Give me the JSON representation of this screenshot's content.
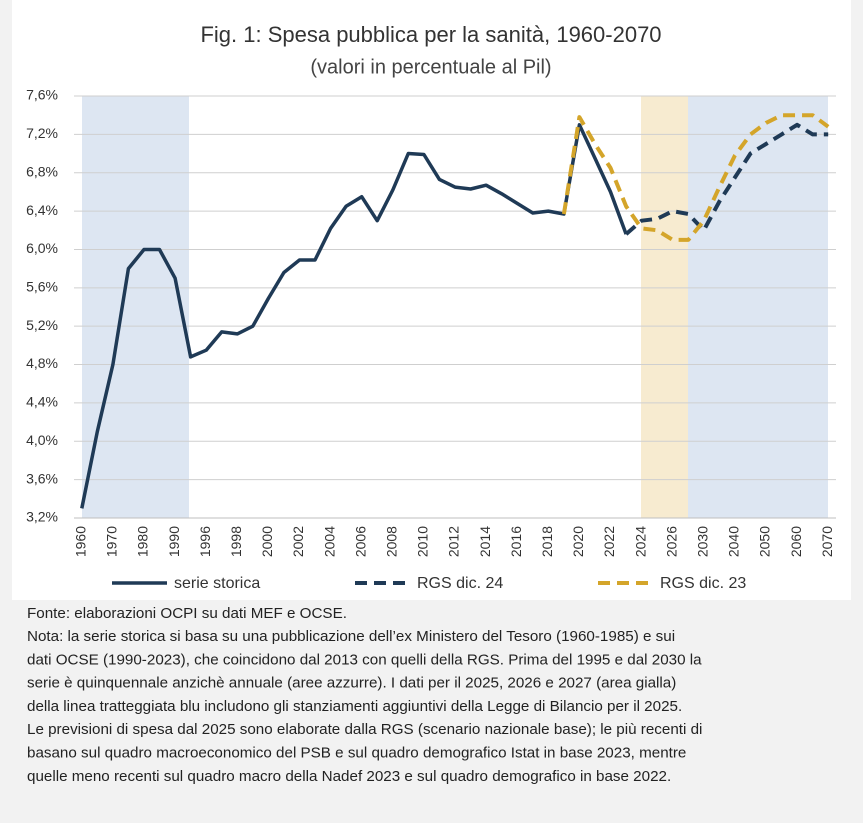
{
  "chart_data": {
    "type": "line",
    "title": "Fig. 1: Spesa pubblica per la sanità, 1960-2070",
    "subtitle": "(valori in percentuale al Pil)",
    "categories": [
      "1960",
      null,
      "1970",
      null,
      "1980",
      null,
      "1990",
      null,
      "1996",
      null,
      "1998",
      null,
      "2000",
      null,
      "2002",
      null,
      "2004",
      null,
      "2006",
      null,
      "2008",
      null,
      "2010",
      null,
      "2012",
      null,
      "2014",
      null,
      "2016",
      null,
      "2018",
      null,
      "2020",
      null,
      "2022",
      null,
      "2024",
      null,
      "2026",
      null,
      "2030",
      null,
      "2040",
      null,
      "2050",
      null,
      "2060",
      null,
      "2070"
    ],
    "series": [
      {
        "name": "serie storica",
        "color": "#1f3a56",
        "dashed": false,
        "values": [
          3.3,
          4.1,
          4.8,
          5.8,
          6.0,
          6.0,
          5.7,
          4.88,
          4.95,
          5.14,
          5.12,
          5.2,
          5.49,
          5.76,
          5.89,
          5.89,
          6.22,
          6.45,
          6.55,
          6.3,
          6.62,
          7.0,
          6.99,
          6.73,
          6.65,
          6.63,
          6.67,
          6.58,
          6.48,
          6.38,
          6.4,
          6.37,
          7.3,
          6.95,
          6.6,
          6.16,
          null,
          null,
          null,
          null,
          null,
          null,
          null,
          null,
          null,
          null,
          null,
          null,
          null
        ]
      },
      {
        "name": "RGS dic. 24",
        "color": "#1f3a56",
        "dashed": true,
        "values": [
          null,
          null,
          null,
          null,
          null,
          null,
          null,
          null,
          null,
          null,
          null,
          null,
          null,
          null,
          null,
          null,
          null,
          null,
          null,
          null,
          null,
          null,
          null,
          null,
          null,
          null,
          null,
          null,
          null,
          null,
          null,
          null,
          null,
          null,
          null,
          6.16,
          6.3,
          6.32,
          6.4,
          6.37,
          6.2,
          6.5,
          6.75,
          7.0,
          7.1,
          7.2,
          7.3,
          7.2,
          7.2
        ]
      },
      {
        "name": "RGS dic. 23",
        "color": "#d4a52a",
        "dashed": true,
        "values": [
          null,
          null,
          null,
          null,
          null,
          null,
          null,
          null,
          null,
          null,
          null,
          null,
          null,
          null,
          null,
          null,
          null,
          null,
          null,
          null,
          null,
          null,
          null,
          null,
          null,
          null,
          null,
          null,
          null,
          null,
          null,
          6.37,
          7.38,
          7.1,
          6.85,
          6.45,
          6.22,
          6.2,
          6.1,
          6.1,
          6.3,
          6.65,
          6.98,
          7.2,
          7.32,
          7.4,
          7.4,
          7.4,
          7.28
        ]
      }
    ],
    "ylim": [
      3.2,
      7.6
    ],
    "yticks": [
      {
        "value": 3.2,
        "label": "3,2%"
      },
      {
        "value": 3.6,
        "label": "3,6%"
      },
      {
        "value": 4.0,
        "label": "4,0%"
      },
      {
        "value": 4.4,
        "label": "4,4%"
      },
      {
        "value": 4.8,
        "label": "4,8%"
      },
      {
        "value": 5.2,
        "label": "5,2%"
      },
      {
        "value": 5.6,
        "label": "5,6%"
      },
      {
        "value": 6.0,
        "label": "6,0%"
      },
      {
        "value": 6.4,
        "label": "6,4%"
      },
      {
        "value": 6.8,
        "label": "6,8%"
      },
      {
        "value": 7.2,
        "label": "7,2%"
      },
      {
        "value": 7.6,
        "label": "7,6%"
      }
    ],
    "grid": true,
    "legend": "bottom",
    "source": "Fonte: elaborazioni OCPI su dati MEF e OCSE.",
    "note_lines": [
      "Nota: la serie storica si basa su una pubblicazione dell’ex Ministero del Tesoro (1960-1985) e sui",
      "dati OCSE (1990-2023), che coincidono dal 2013 con quelli della RGS. Prima del 1995 e dal 2030 la",
      "serie è quinquennale anzichè annuale (aree azzurre). I dati per il 2025, 2026 e 2027 (area gialla)",
      "della linea tratteggiata blu includono gli stanziamenti aggiuntivi della Legge di Bilancio per il 2025.",
      "Le previsioni di spesa dal 2025 sono elaborate dalla RGS (scenario nazionale base); le più recenti di",
      "basano sul quadro macroeconomico del PSB e sul quadro demografico Istat in base 2023, mentre",
      "quelle meno recenti sul quadro macro della Nadef 2023 e sul quadro demografico in base 2022."
    ]
  }
}
